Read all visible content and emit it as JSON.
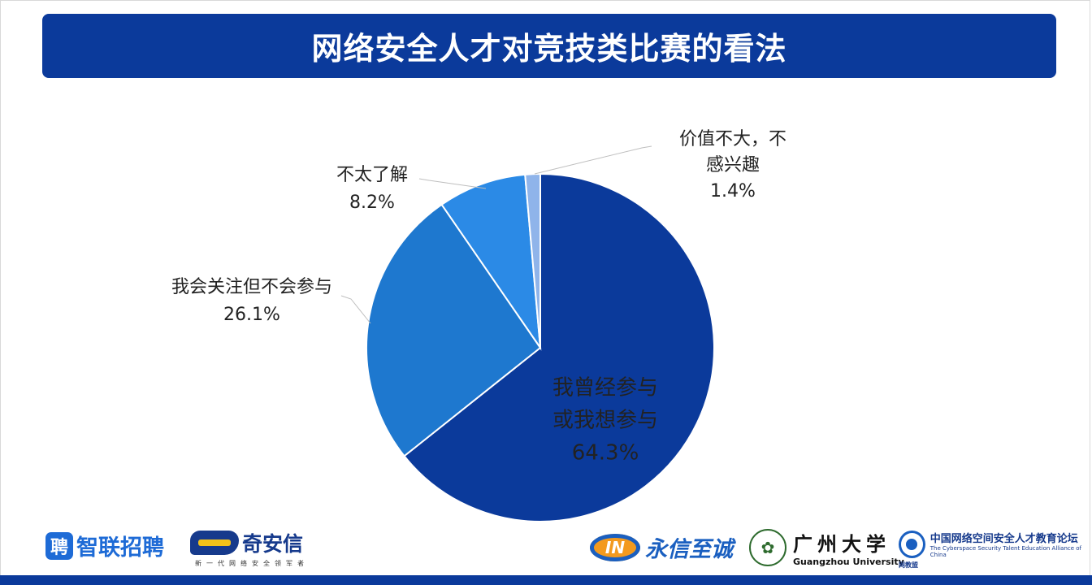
{
  "title": "网络安全人才对竞技类比赛的看法",
  "chart_data": {
    "type": "pie",
    "title": "网络安全人才对竞技类比赛的看法",
    "slices": [
      {
        "label_lines": [
          "我曾经参与",
          "或我想参与"
        ],
        "value": 64.3,
        "value_label": "64.3%",
        "color": "#0b3a9b"
      },
      {
        "label_lines": [
          "我会关注但不会参与"
        ],
        "value": 26.1,
        "value_label": "26.1%",
        "color": "#1e78cf"
      },
      {
        "label_lines": [
          "不太了解"
        ],
        "value": 8.2,
        "value_label": "8.2%",
        "color": "#2b8ae6"
      },
      {
        "label_lines": [
          "价值不大，不",
          "感兴趣"
        ],
        "value": 1.4,
        "value_label": "1.4%",
        "color": "#8fb4ea"
      }
    ],
    "start_angle": "12 o'clock",
    "direction": "clockwise"
  },
  "logos": {
    "zhilian": {
      "badge": "聘",
      "text": "智联招聘"
    },
    "qianxin": {
      "text": "奇安信",
      "sub": "新一代网络安全领军者"
    },
    "yongxin": {
      "mark": "IN",
      "text": "永信至诚"
    },
    "gzhu": {
      "text": "广州大学",
      "sub": "Guangzhou University"
    },
    "alliance": {
      "text": "中国网络空间安全人才教育论坛",
      "sub": "The Cyberspace Security Talent Education Alliance of China",
      "tag": "网教盟"
    }
  }
}
